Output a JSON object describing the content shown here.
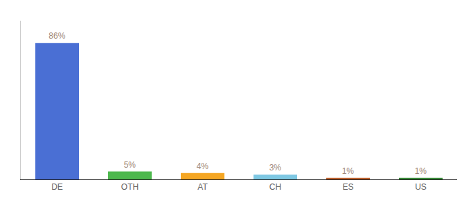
{
  "chart_data": {
    "type": "bar",
    "categories": [
      "DE",
      "OTH",
      "AT",
      "CH",
      "ES",
      "US"
    ],
    "values": [
      86,
      5,
      4,
      3,
      1,
      1
    ],
    "value_labels": [
      "86%",
      "5%",
      "4%",
      "3%",
      "1%",
      "1%"
    ],
    "colors": [
      "#4a6fd4",
      "#4db84d",
      "#f5a623",
      "#7ec8e3",
      "#c0622f",
      "#3a8c3a"
    ],
    "ylim": [
      0,
      100
    ],
    "data_labels": true,
    "grid": false,
    "tick_labels": "x"
  }
}
